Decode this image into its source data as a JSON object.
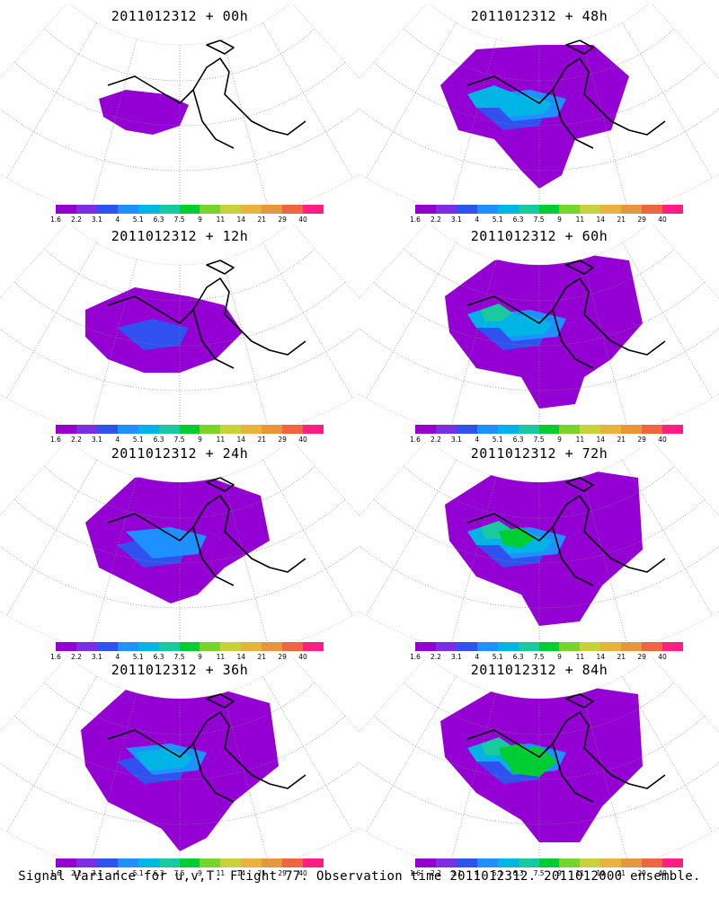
{
  "panels": [
    {
      "title": "2011012312 + 00h",
      "level": 0
    },
    {
      "title": "2011012312 + 48h",
      "level": 4
    },
    {
      "title": "2011012312 + 12h",
      "level": 1
    },
    {
      "title": "2011012312 + 60h",
      "level": 5
    },
    {
      "title": "2011012312 + 24h",
      "level": 2
    },
    {
      "title": "2011012312 + 72h",
      "level": 6
    },
    {
      "title": "2011012312 + 36h",
      "level": 3
    },
    {
      "title": "2011012312 + 84h",
      "level": 7
    }
  ],
  "colorbar": {
    "colors": [
      "#9400d3",
      "#7a2ee8",
      "#3050f0",
      "#1e90ff",
      "#00b4e6",
      "#19c9a0",
      "#00cc33",
      "#7ad22a",
      "#c8d23a",
      "#e6b43c",
      "#e6963c",
      "#f06446",
      "#ff1e82"
    ],
    "ticks": [
      "1.6",
      "2.2",
      "3.1",
      "4",
      "5.1",
      "6.3",
      "7.5",
      "9",
      "11",
      "14",
      "21",
      "29",
      "40"
    ]
  },
  "caption": "Signal Variance for u,v,T. Flight 77. Observation time 2011012312. 2011012000 ensemble."
}
